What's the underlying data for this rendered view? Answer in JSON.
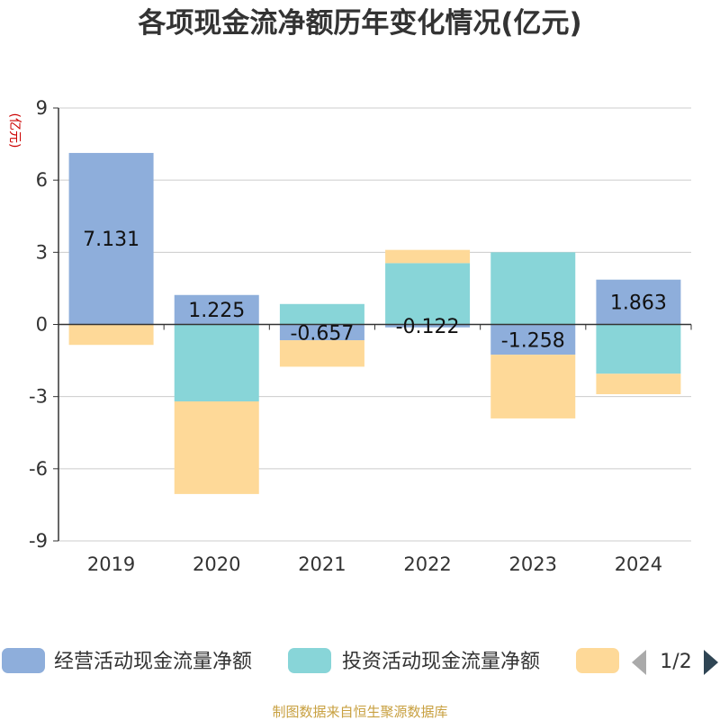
{
  "chart_data": {
    "type": "bar",
    "stacked": true,
    "title": "各项现金流净额历年变化情况(亿元)",
    "ylabel": "(亿元)",
    "ylim": [
      -9,
      9
    ],
    "yticks": [
      9,
      6,
      3,
      0,
      -3,
      -6,
      -9
    ],
    "categories": [
      "2019",
      "2020",
      "2021",
      "2022",
      "2023",
      "2024"
    ],
    "series": [
      {
        "name": "经营活动现金流量净额",
        "color": "#8eaedb",
        "values": [
          7.131,
          1.225,
          -0.657,
          -0.122,
          -1.258,
          1.863
        ],
        "labels": [
          "7.131",
          "1.225",
          "-0.657",
          "-0.122",
          "-1.258",
          "1.863"
        ]
      },
      {
        "name": "投资活动现金流量净额",
        "color": "#88d5d8",
        "values": [
          0,
          -3.2,
          0.85,
          2.55,
          3.0,
          -2.05
        ]
      },
      {
        "name": "",
        "color": "#fed998",
        "values": [
          -0.85,
          -3.85,
          -1.1,
          0.55,
          -2.65,
          -0.85
        ]
      }
    ]
  },
  "legend": {
    "page_indicator": "1/2",
    "prev_icon": "triangle-left-icon",
    "next_icon": "triangle-right-icon",
    "prev_color": "#aaaaaa",
    "next_color": "#2f4554"
  },
  "source": "制图数据来自恒生聚源数据库"
}
